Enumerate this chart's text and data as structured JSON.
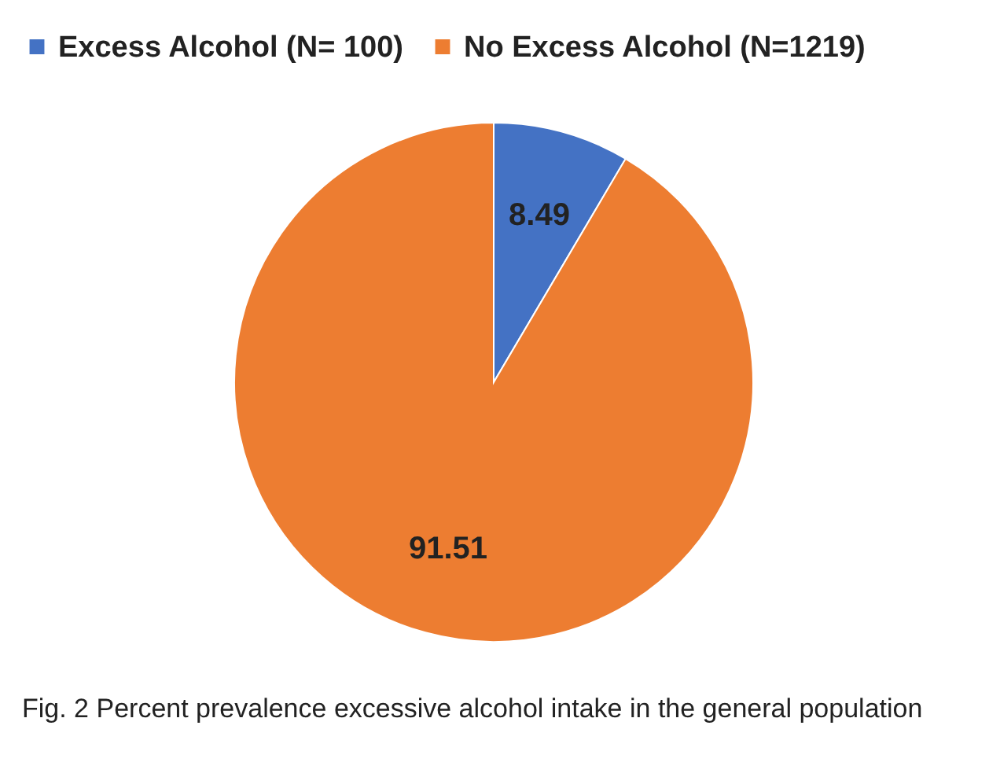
{
  "chart_data": {
    "type": "pie",
    "categories": [
      "Excess Alcohol (N= 100)",
      "No Excess Alcohol (N=1219)"
    ],
    "values": [
      8.49,
      91.51
    ],
    "colors": [
      "#4472c4",
      "#ed7d31"
    ],
    "data_labels": true,
    "legend": "top",
    "annotations": [
      "Fig. 2  Percent prevalence excessive alcohol intake in the general population"
    ]
  }
}
